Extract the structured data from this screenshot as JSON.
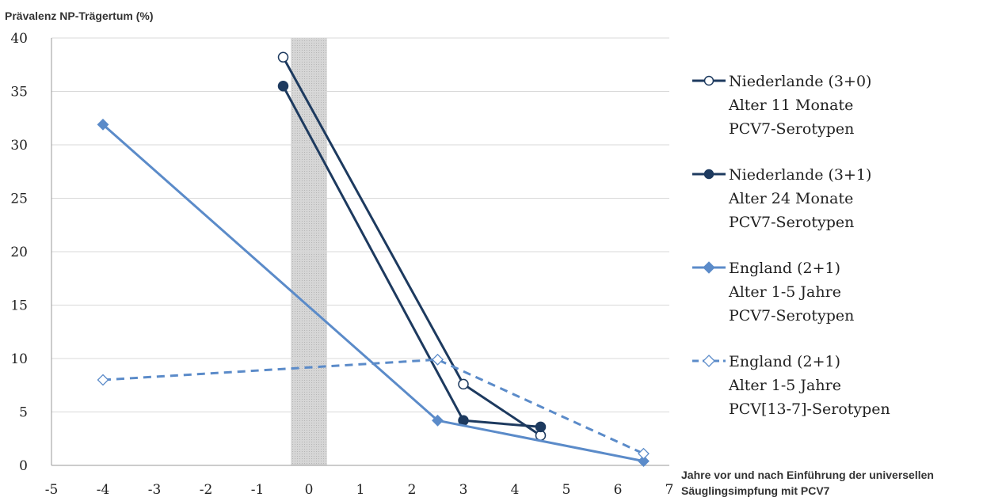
{
  "chart_data": {
    "type": "line",
    "ylabel": "Prävalenz NP-Trägertum (%)",
    "xlabel_line1": "Jahre vor und nach Einführung der universellen",
    "xlabel_line2": "Säuglingsimpfung mit PCV7",
    "xlim": [
      -5,
      7
    ],
    "ylim": [
      0,
      40
    ],
    "xticks": [
      "-5",
      "-4",
      "-3",
      "-2",
      "-1",
      "0",
      "1",
      "2",
      "3",
      "4",
      "5",
      "6",
      "7"
    ],
    "yticks": [
      "0",
      "5",
      "10",
      "15",
      "20",
      "25",
      "30",
      "35",
      "40"
    ],
    "grid": true,
    "shaded_band": [
      -0.35,
      0.35
    ],
    "series": [
      {
        "name_line1": "Niederlande (3+0)",
        "name_line2": "Alter 11 Monate",
        "name_line3": "PCV7-Serotypen",
        "color": "#1d3a5f",
        "marker": "circle-open",
        "dash": false,
        "points": [
          [
            -0.5,
            38.2
          ],
          [
            3.0,
            7.6
          ],
          [
            4.5,
            2.8
          ]
        ]
      },
      {
        "name_line1": "Niederlande (3+1)",
        "name_line2": "Alter 24 Monate",
        "name_line3": "PCV7-Serotypen",
        "color": "#1d3a5f",
        "marker": "circle-filled",
        "dash": false,
        "points": [
          [
            -0.5,
            35.5
          ],
          [
            3.0,
            4.2
          ],
          [
            4.5,
            3.6
          ]
        ]
      },
      {
        "name_line1": "England (2+1)",
        "name_line2": "Alter 1-5 Jahre",
        "name_line3": "PCV7-Serotypen",
        "color": "#5b8bc9",
        "marker": "diamond-filled",
        "dash": false,
        "points": [
          [
            -4,
            31.9
          ],
          [
            2.5,
            4.2
          ],
          [
            6.5,
            0.4
          ]
        ]
      },
      {
        "name_line1": "England (2+1)",
        "name_line2": "Alter 1-5 Jahre",
        "name_line3": "PCV[13-7]-Serotypen",
        "color": "#5b8bc9",
        "marker": "diamond-open",
        "dash": true,
        "points": [
          [
            -4,
            8.0
          ],
          [
            2.5,
            9.9
          ],
          [
            6.5,
            1.1
          ]
        ]
      }
    ]
  }
}
